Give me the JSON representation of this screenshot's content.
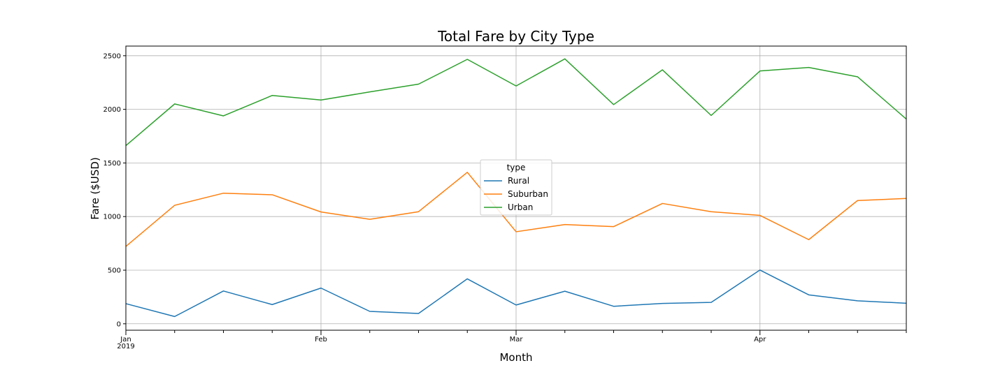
{
  "chart_data": {
    "type": "line",
    "title": "Total Fare by City Type",
    "xlabel": "Month",
    "ylabel": "Fare ($USD)",
    "legend_title": "type",
    "legend_position": "center",
    "grid": true,
    "ylim": [
      -60,
      2590
    ],
    "yticks": [
      0,
      500,
      1000,
      1500,
      2000,
      2500
    ],
    "x": [
      "2019-01-06",
      "2019-01-13",
      "2019-01-20",
      "2019-01-27",
      "2019-02-03",
      "2019-02-10",
      "2019-02-17",
      "2019-02-24",
      "2019-03-03",
      "2019-03-10",
      "2019-03-17",
      "2019-03-24",
      "2019-03-31",
      "2019-04-07",
      "2019-04-14",
      "2019-04-21",
      "2019-04-28"
    ],
    "xlim": [
      "2019-01-06",
      "2019-04-28"
    ],
    "major_ticks": [
      {
        "date": "2019-01-06",
        "label": "Jan",
        "sublabel": "2019"
      },
      {
        "date": "2019-02-03",
        "label": "Feb",
        "sublabel": ""
      },
      {
        "date": "2019-03-03",
        "label": "Mar",
        "sublabel": ""
      },
      {
        "date": "2019-04-07",
        "label": "Apr",
        "sublabel": ""
      }
    ],
    "series": [
      {
        "name": "Rural",
        "color": "#1f77b4",
        "values": [
          187.9,
          67.65,
          306.0,
          179.2,
          333.1,
          115.8,
          96.0,
          419.1,
          175.1,
          303.9,
          163.4,
          189.8,
          199.4,
          501.2,
          269.8,
          214.1,
          191.85
        ]
      },
      {
        "name": "Suburban",
        "color": "#ff7f0e",
        "values": [
          721.6,
          1105.1,
          1218.2,
          1203.3,
          1042.8,
          974.3,
          1045.5,
          1412.7,
          858.5,
          925.3,
          906.2,
          1122.2,
          1045.1,
          1010.7,
          784.8,
          1149.3,
          1169.0
        ]
      },
      {
        "name": "Urban",
        "color": "#2ca02c",
        "values": [
          1661.7,
          2050.4,
          1939.0,
          2129.5,
          2086.9,
          2162.6,
          2235.1,
          2466.3,
          2218.2,
          2470.9,
          2044.4,
          2368.4,
          1943.0,
          2357.9,
          2390.7,
          2303.8,
          1909.5
        ]
      }
    ]
  }
}
